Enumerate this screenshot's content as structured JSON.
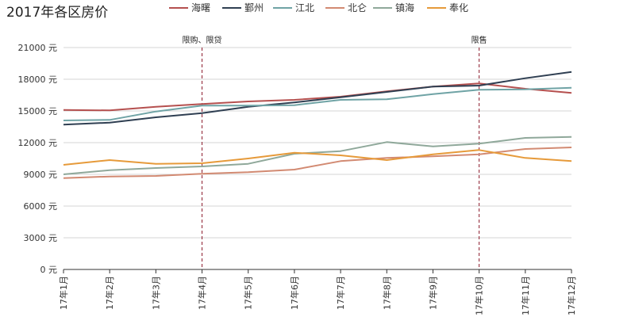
{
  "chart_data": {
    "type": "line",
    "title": "2017年各区房价",
    "xlabel": "",
    "ylabel": "",
    "y_unit": "元",
    "ylim": [
      0,
      21000
    ],
    "yticks": [
      0,
      3000,
      6000,
      9000,
      12000,
      15000,
      18000,
      21000
    ],
    "grid": true,
    "legend_position": "top",
    "categories": [
      "17年1月",
      "17年2月",
      "17年3月",
      "17年4月",
      "17年5月",
      "17年6月",
      "17年7月",
      "17年8月",
      "17年9月",
      "17年10月",
      "17年11月",
      "17年12月"
    ],
    "series": [
      {
        "name": "海曙",
        "color": "#b5504f",
        "values": [
          15100,
          15050,
          15400,
          15650,
          15900,
          16050,
          16350,
          16850,
          17300,
          17600,
          17100,
          16700
        ]
      },
      {
        "name": "鄞州",
        "color": "#2f3f52",
        "values": [
          13700,
          13900,
          14400,
          14800,
          15400,
          15800,
          16300,
          16800,
          17300,
          17400,
          18100,
          18700
        ]
      },
      {
        "name": "江北",
        "color": "#6fa3a5",
        "values": [
          14100,
          14150,
          14950,
          15500,
          15500,
          15550,
          16050,
          16100,
          16600,
          17000,
          17050,
          17200
        ]
      },
      {
        "name": "北仑",
        "color": "#d28a72",
        "values": [
          8650,
          8800,
          8850,
          9050,
          9200,
          9450,
          10250,
          10550,
          10700,
          10900,
          11400,
          11550
        ]
      },
      {
        "name": "镇海",
        "color": "#8fa89a",
        "values": [
          9000,
          9400,
          9600,
          9750,
          10000,
          10950,
          11200,
          12050,
          11650,
          11900,
          12450,
          12550
        ]
      },
      {
        "name": "奉化",
        "color": "#e69a3a",
        "values": [
          9900,
          10350,
          10000,
          10050,
          10500,
          11050,
          10800,
          10350,
          10900,
          11300,
          10550,
          10250
        ]
      }
    ],
    "annotations": [
      {
        "category": "17年4月",
        "label": "限购、限贷",
        "color": "#8b1a2b"
      },
      {
        "category": "17年10月",
        "label": "限售",
        "color": "#8b1a2b"
      }
    ]
  }
}
